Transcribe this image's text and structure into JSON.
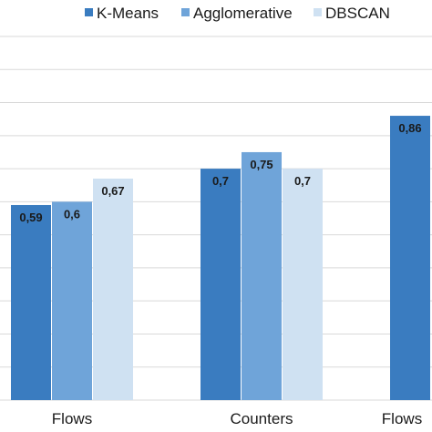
{
  "chart_data": {
    "type": "bar",
    "categories": [
      "Flows",
      "Counters",
      "Flows"
    ],
    "series": [
      {
        "name": "K-Means",
        "values": [
          0.59,
          0.7,
          0.86
        ],
        "labels": [
          "0,59",
          "0,7",
          "0,86"
        ],
        "color": "#3a7cc0"
      },
      {
        "name": "Agglomerative",
        "values": [
          0.6,
          0.75,
          null
        ],
        "labels": [
          "0,6",
          "0,75",
          ""
        ],
        "color": "#6fa4d9"
      },
      {
        "name": "DBSCAN",
        "values": [
          0.67,
          0.7,
          null
        ],
        "labels": [
          "0,67",
          "0,7",
          ""
        ],
        "color": "#cfe1f2"
      }
    ],
    "ylim": [
      0,
      1.1
    ],
    "grid": true,
    "legend_position": "top-right",
    "title": "",
    "xlabel": "",
    "ylabel": ""
  }
}
